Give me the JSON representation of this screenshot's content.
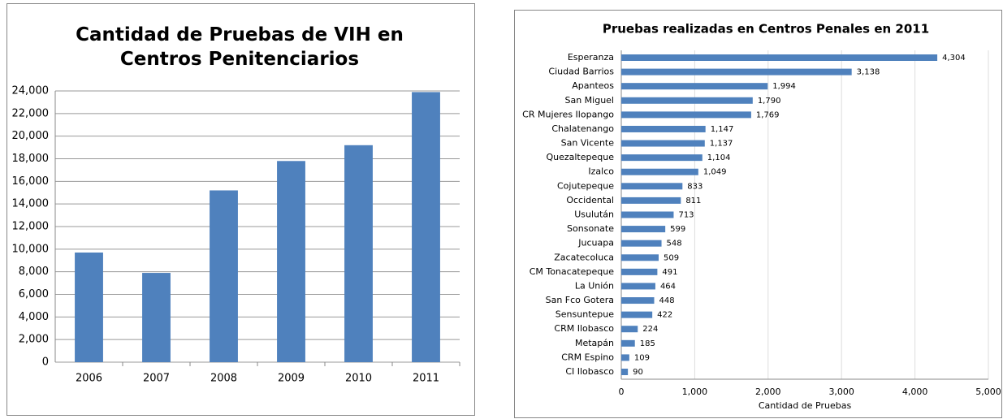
{
  "chart_data": [
    {
      "type": "bar",
      "title": "Cantidad de Pruebas de VIH en Centros Penitenciarios",
      "categories": [
        "2006",
        "2007",
        "2008",
        "2009",
        "2010",
        "2011"
      ],
      "values": [
        9700,
        7900,
        15200,
        17800,
        19200,
        23900
      ],
      "color": "#4f81bd",
      "ylim": [
        0,
        24000
      ],
      "yticks": [
        0,
        {
          "value": 2000,
          "label": "2,000"
        },
        {
          "value": 4000,
          "label": "4,000"
        },
        {
          "value": 6000,
          "label": "6,000"
        },
        {
          "value": 8000,
          "label": "8,000"
        },
        {
          "value": 10000,
          "label": "10,000"
        },
        {
          "value": 12000,
          "label": "12,000"
        },
        {
          "value": 14000,
          "label": "14,000"
        },
        {
          "value": 16000,
          "label": "16,000"
        },
        {
          "value": 18000,
          "label": "18,000"
        },
        {
          "value": 20000,
          "label": "20,000"
        },
        {
          "value": 22000,
          "label": "22,000"
        },
        {
          "value": 24000,
          "label": "24,000"
        }
      ],
      "grid": true
    },
    {
      "type": "hbar",
      "title": "Pruebas realizadas en Centros Penales en 2011",
      "xlabel": "Cantidad de Pruebas",
      "categories": [
        "Esperanza",
        "Ciudad Barrios",
        "Apanteos",
        "San Miguel",
        "CR Mujeres Ilopango",
        "Chalatenango",
        "San Vicente",
        "Quezaltepeque",
        "Izalco",
        "Cojutepeque",
        "Occidental",
        "Usulután",
        "Sonsonate",
        "Jucuapa",
        "Zacatecoluca",
        "CM Tonacatepeque",
        "La Unión",
        "San Fco Gotera",
        "Sensuntepue",
        "CRM Ilobasco",
        "Metapán",
        "CRM Espino",
        "CI  Ilobasco"
      ],
      "values": [
        4304,
        3138,
        1994,
        1790,
        1769,
        1147,
        1137,
        1104,
        1049,
        833,
        811,
        713,
        599,
        548,
        509,
        491,
        464,
        448,
        422,
        224,
        185,
        109,
        90
      ],
      "value_labels": [
        "4,304",
        "3,138",
        "1,994",
        "1,790",
        "1,769",
        "1,147",
        "1,137",
        "1,104",
        "1,049",
        "833",
        "811",
        "713",
        "599",
        "548",
        "509",
        "491",
        "464",
        "448",
        "422",
        "224",
        "185",
        "109",
        "90"
      ],
      "color": "#4f81bd",
      "xlim": [
        0,
        5000
      ],
      "xticks": [
        0,
        {
          "value": 1000,
          "label": "1,000"
        },
        {
          "value": 2000,
          "label": "2,000"
        },
        {
          "value": 3000,
          "label": "3,000"
        },
        {
          "value": 4000,
          "label": "4,000"
        },
        {
          "value": 5000,
          "label": "5,000"
        }
      ],
      "grid": true
    }
  ]
}
